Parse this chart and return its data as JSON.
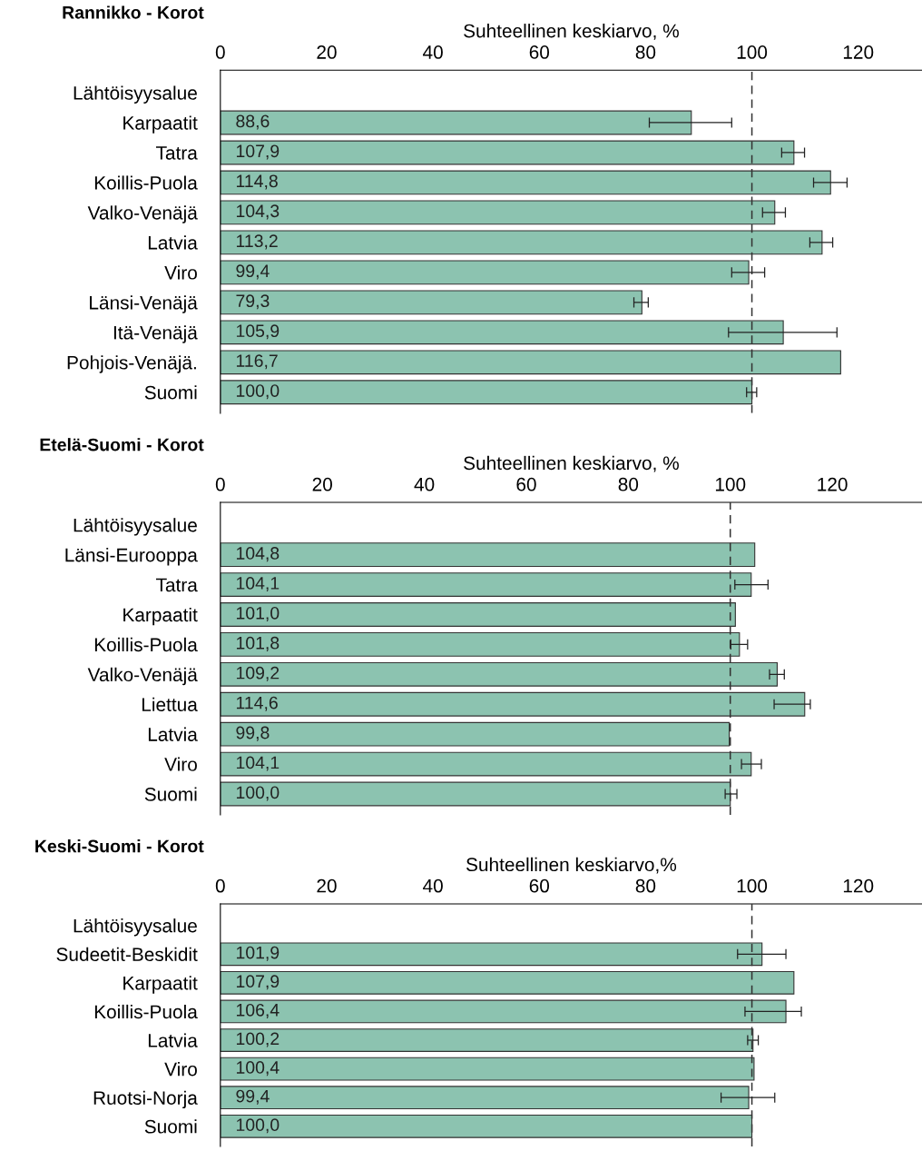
{
  "chart_data": [
    {
      "type": "bar",
      "orientation": "horizontal",
      "title": "Rannikko - Korot",
      "xlabel": "Suhteellinen keskiarvo, %",
      "categories": [
        "Lähtöisyysalue",
        "Karpaatit",
        "Tatra",
        "Koillis-Puola",
        "Valko-Venäjä",
        "Latvia",
        "Viro",
        "Länsi-Venäjä",
        "Itä-Venäjä",
        "Pohjois-Venäjä.",
        "Suomi"
      ],
      "values": [
        null,
        88.6,
        107.9,
        114.8,
        104.3,
        113.2,
        99.4,
        79.3,
        105.9,
        116.7,
        100.0
      ],
      "value_labels": [
        null,
        "88,6",
        "107,9",
        "114,8",
        "104,3",
        "113,2",
        "99,4",
        "79,3",
        "105,9",
        "116,7",
        "100,0"
      ],
      "errors": [
        null,
        [
          80.7,
          96.2
        ],
        [
          105.6,
          109.9
        ],
        [
          111.6,
          117.9
        ],
        [
          102.0,
          106.3
        ],
        [
          110.9,
          115.2
        ],
        [
          96.2,
          102.4
        ],
        [
          77.8,
          80.5
        ],
        [
          95.6,
          116.0
        ],
        null,
        [
          99.0,
          100.9
        ]
      ],
      "color": "#8cc3b0",
      "xlim": [
        0,
        132
      ],
      "xticks": [
        0,
        20,
        40,
        60,
        80,
        100,
        120
      ],
      "ref_lines": [
        {
          "axis": "x",
          "value": 100,
          "line_style": "dashed",
          "color": "#333333"
        }
      ],
      "grid": false,
      "legend": false
    },
    {
      "type": "bar",
      "orientation": "horizontal",
      "title": "Etelä-Suomi - Korot",
      "xlabel": "Suhteellinen keskiarvo, %",
      "categories": [
        "Lähtöisyysalue",
        "Länsi-Eurooppa",
        "Tatra",
        "Karpaatit",
        "Koillis-Puola",
        "Valko-Venäjä",
        "Liettua",
        "Latvia",
        "Viro",
        "Suomi"
      ],
      "values": [
        null,
        104.8,
        104.1,
        101.0,
        101.8,
        109.2,
        114.6,
        99.8,
        104.1,
        100.0
      ],
      "value_labels": [
        null,
        "104,8",
        "104,1",
        "101,0",
        "101,8",
        "109,2",
        "114,6",
        "99,8",
        "104,1",
        "100,0"
      ],
      "errors": [
        null,
        null,
        [
          100.9,
          107.4
        ],
        null,
        [
          100.1,
          103.4
        ],
        [
          107.7,
          110.6
        ],
        [
          108.6,
          115.7
        ],
        null,
        [
          102.2,
          106.1
        ],
        [
          99.0,
          101.3
        ]
      ],
      "color": "#8cc3b0",
      "xlim": [
        0,
        137.6
      ],
      "xticks": [
        0,
        20,
        40,
        60,
        80,
        100,
        120
      ],
      "ref_lines": [
        {
          "axis": "x",
          "value": 100,
          "line_style": "dashed",
          "color": "#333333"
        }
      ],
      "grid": false,
      "legend": false
    },
    {
      "type": "bar",
      "orientation": "horizontal",
      "title": "Keski-Suomi - Korot",
      "xlabel": "Suhteellinen keskiarvo,%",
      "categories": [
        "Lähtöisyysalue",
        "Sudeetit-Beskidit",
        "Karpaatit",
        "Koillis-Puola",
        "Latvia",
        "Viro",
        "Ruotsi-Norja",
        "Suomi"
      ],
      "values": [
        null,
        101.9,
        107.9,
        106.4,
        100.2,
        100.4,
        99.4,
        100.0
      ],
      "value_labels": [
        null,
        "101,9",
        "107,9",
        "106,4",
        "100,2",
        "100,4",
        "99,4",
        "100,0"
      ],
      "errors": [
        null,
        [
          97.3,
          106.4
        ],
        null,
        [
          98.7,
          109.3
        ],
        [
          99.2,
          101.2
        ],
        null,
        [
          94.2,
          104.3
        ],
        null
      ],
      "color": "#8cc3b0",
      "xlim": [
        0,
        132
      ],
      "xticks": [
        0,
        20,
        40,
        60,
        80,
        100,
        120
      ],
      "ref_lines": [
        {
          "axis": "x",
          "value": 100,
          "line_style": "dashed",
          "color": "#333333"
        }
      ],
      "grid": false,
      "legend": false
    }
  ]
}
